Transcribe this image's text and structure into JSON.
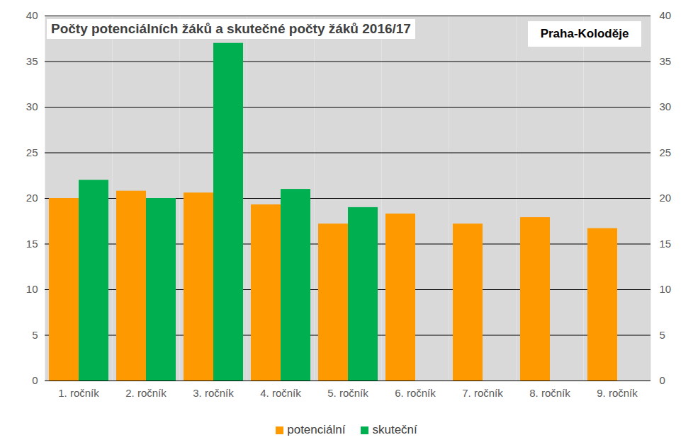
{
  "chart_data": {
    "type": "bar",
    "title": "Počty potenciálních žáků a skutečné počty žáků 2016/17",
    "subtitle": "Praha-Koloděje",
    "categories": [
      "1. ročník",
      "2. ročník",
      "3. ročník",
      "4. ročník",
      "5. ročník",
      "6. ročník",
      "7. ročník",
      "8. ročník",
      "9. ročník"
    ],
    "series": [
      {
        "name": "potenciální",
        "color": "#ff9900",
        "values": [
          20.0,
          20.8,
          20.6,
          19.3,
          17.2,
          18.3,
          17.2,
          17.9,
          16.7
        ]
      },
      {
        "name": "skuteční",
        "color": "#00b050",
        "values": [
          22,
          20,
          37,
          21,
          19,
          null,
          null,
          null,
          null
        ]
      }
    ],
    "ylim": [
      0,
      40
    ],
    "yticks": [
      0,
      5,
      10,
      15,
      20,
      25,
      30,
      35,
      40
    ],
    "y2lim": [
      0,
      40
    ],
    "y2ticks": [
      0,
      5,
      10,
      15,
      20,
      25,
      30,
      35,
      40
    ],
    "grid": true,
    "legend": "bottom"
  }
}
